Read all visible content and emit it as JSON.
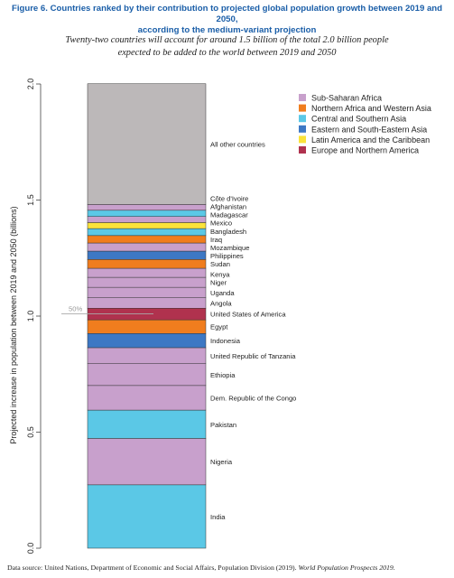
{
  "title_line1": "Figure 6. Countries ranked by their contribution to projected global population growth between 2019 and 2050,",
  "title_line2": "according to the medium-variant projection",
  "subtitle_line1": "Twenty-two countries will account for around 1.5 billion of the total 2.0 billion people",
  "subtitle_line2": "expected to be added to the world between 2019 and 2050",
  "source_plain": "Data source: United Nations, Department of Economic and Social Affairs, Population Division (2019).",
  "source_italic": "World Population Prospects 2019.",
  "colors": {
    "Sub-Saharan Africa": "#c8a0cc",
    "Northern Africa and Western Asia": "#f07d1e",
    "Central and Southern Asia": "#5bc8e6",
    "Eastern and South-Eastern Asia": "#3d78c4",
    "Latin America and the Caribbean": "#fbe33a",
    "Europe and Northern America": "#b0324e",
    "Other": "#bcb8b9"
  },
  "chart_data": {
    "type": "bar",
    "stacked": true,
    "ylabel": "Projected increase in population between 2019 and 2050 (billions)",
    "ylim": [
      0,
      2.0
    ],
    "yticks": [
      "0.0",
      "0.5",
      "1.0",
      "1.5",
      "2.0"
    ],
    "reference_line": {
      "label": "50%",
      "value": 1.01
    },
    "legend": [
      "Sub-Saharan Africa",
      "Northern Africa and Western Asia",
      "Central and Southern Asia",
      "Eastern and South-Eastern Asia",
      "Latin America and the Caribbean",
      "Europe and Northern America"
    ],
    "legend_position": "top-right",
    "segments": [
      {
        "name": "India",
        "value": 0.273,
        "region": "Central and Southern Asia"
      },
      {
        "name": "Nigeria",
        "value": 0.2,
        "region": "Sub-Saharan Africa"
      },
      {
        "name": "Pakistan",
        "value": 0.122,
        "region": "Central and Southern Asia"
      },
      {
        "name": "Dem. Republic of the Congo",
        "value": 0.106,
        "region": "Sub-Saharan Africa"
      },
      {
        "name": "Ethiopia",
        "value": 0.094,
        "region": "Sub-Saharan Africa"
      },
      {
        "name": "United Republic of Tanzania",
        "value": 0.069,
        "region": "Sub-Saharan Africa"
      },
      {
        "name": "Indonesia",
        "value": 0.061,
        "region": "Eastern and South-Eastern Asia"
      },
      {
        "name": "Egypt",
        "value": 0.059,
        "region": "Northern Africa and Western Asia"
      },
      {
        "name": "United States of America",
        "value": 0.05,
        "region": "Europe and Northern America"
      },
      {
        "name": "Angola",
        "value": 0.045,
        "region": "Sub-Saharan Africa"
      },
      {
        "name": "Uganda",
        "value": 0.045,
        "region": "Sub-Saharan Africa"
      },
      {
        "name": "Niger",
        "value": 0.043,
        "region": "Sub-Saharan Africa"
      },
      {
        "name": "Kenya",
        "value": 0.039,
        "region": "Sub-Saharan Africa"
      },
      {
        "name": "Sudan",
        "value": 0.038,
        "region": "Northern Africa and Western Asia"
      },
      {
        "name": "Philippines",
        "value": 0.036,
        "region": "Eastern and South-Eastern Asia"
      },
      {
        "name": "Mozambique",
        "value": 0.035,
        "region": "Sub-Saharan Africa"
      },
      {
        "name": "Iraq",
        "value": 0.032,
        "region": "Northern Africa and Western Asia"
      },
      {
        "name": "Bangladesh",
        "value": 0.03,
        "region": "Central and Southern Asia"
      },
      {
        "name": "Mexico",
        "value": 0.026,
        "region": "Latin America and the Caribbean"
      },
      {
        "name": "Madagascar",
        "value": 0.026,
        "region": "Sub-Saharan Africa"
      },
      {
        "name": "Afghanistan",
        "value": 0.027,
        "region": "Central and Southern Asia"
      },
      {
        "name": "Côte d'Ivoire",
        "value": 0.025,
        "region": "Sub-Saharan Africa"
      },
      {
        "name": "All other countries",
        "value": 0.52,
        "region": "Other"
      }
    ]
  }
}
